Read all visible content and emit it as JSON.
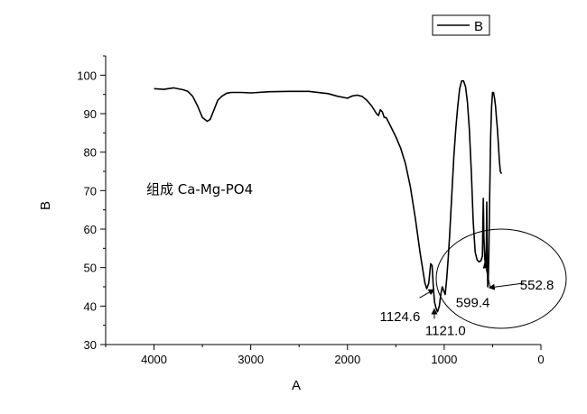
{
  "chart_data": {
    "type": "line",
    "xlabel": "A",
    "ylabel": "B",
    "xlim": [
      4500,
      0
    ],
    "ylim": [
      30,
      105
    ],
    "x_reversed": true,
    "x_ticks": [
      4000,
      3000,
      2000,
      1000,
      0
    ],
    "x_tick_labels": [
      "4000",
      "3000",
      "2000",
      "1000",
      "0"
    ],
    "y_ticks": [
      30,
      40,
      50,
      60,
      70,
      80,
      90,
      100
    ],
    "y_tick_labels": [
      "30",
      "40",
      "50",
      "60",
      "70",
      "80",
      "90",
      "100"
    ],
    "legend": {
      "entries": [
        "B"
      ],
      "placement": "top-right"
    },
    "annotation_text": "组成 Ca-Mg-PO4",
    "peaks": [
      {
        "label": "1124.6",
        "x": 1124.6,
        "y": 44.5
      },
      {
        "label": "1121.0",
        "x": 1121.0,
        "y": 39.5
      },
      {
        "label": "599.4",
        "x": 599.4,
        "y": 51.5
      },
      {
        "label": "552.8",
        "x": 552.8,
        "y": 45.0
      }
    ],
    "series": [
      {
        "name": "B",
        "x": [
          4000,
          3900,
          3800,
          3700,
          3650,
          3600,
          3550,
          3500,
          3450,
          3420,
          3380,
          3340,
          3300,
          3250,
          3200,
          3100,
          3000,
          2800,
          2600,
          2400,
          2200,
          2100,
          2000,
          1950,
          1900,
          1850,
          1800,
          1750,
          1700,
          1680,
          1660,
          1640,
          1620,
          1600,
          1580,
          1550,
          1500,
          1450,
          1400,
          1350,
          1300,
          1250,
          1200,
          1180,
          1160,
          1140,
          1125,
          1110,
          1100,
          1085,
          1070,
          1050,
          1035,
          1020,
          1005,
          990,
          975,
          960,
          945,
          930,
          915,
          900,
          880,
          860,
          840,
          820,
          800,
          780,
          760,
          740,
          720,
          700,
          680,
          660,
          640,
          620,
          605,
          600,
          596,
          590,
          580,
          570,
          565,
          560,
          555,
          550,
          545,
          540,
          530,
          520,
          510,
          500,
          490,
          480,
          470,
          460,
          450,
          440,
          430,
          420,
          410,
          405
        ],
        "y": [
          96.5,
          96.3,
          96.7,
          96.2,
          95.8,
          94.5,
          92.0,
          89.0,
          88.0,
          88.5,
          91.0,
          93.5,
          94.5,
          95.3,
          95.5,
          95.5,
          95.4,
          95.7,
          95.8,
          95.8,
          95.2,
          94.5,
          94.0,
          94.6,
          94.8,
          94.5,
          93.5,
          92.0,
          90.0,
          89.5,
          91.0,
          90.5,
          89.0,
          89.0,
          88.0,
          86.5,
          84.0,
          81.0,
          77.0,
          71.0,
          63.0,
          54.0,
          46.0,
          44.5,
          46.0,
          51.0,
          50.5,
          44.0,
          41.0,
          39.5,
          38.5,
          40.0,
          43.0,
          45.0,
          44.0,
          43.0,
          47.0,
          52.0,
          58.0,
          65.0,
          72.0,
          79.0,
          86.0,
          92.0,
          96.5,
          98.5,
          98.5,
          97.0,
          93.0,
          86.0,
          75.0,
          62.0,
          54.0,
          52.0,
          51.5,
          51.8,
          53.0,
          62.0,
          68.0,
          58.0,
          52.0,
          50.5,
          55.0,
          67.0,
          52.0,
          45.0,
          46.5,
          52.0,
          68.0,
          84.0,
          92.0,
          95.5,
          95.5,
          94.0,
          92.0,
          89.0,
          86.0,
          82.0,
          78.0,
          75.0,
          74.5,
          74.5
        ]
      }
    ]
  }
}
